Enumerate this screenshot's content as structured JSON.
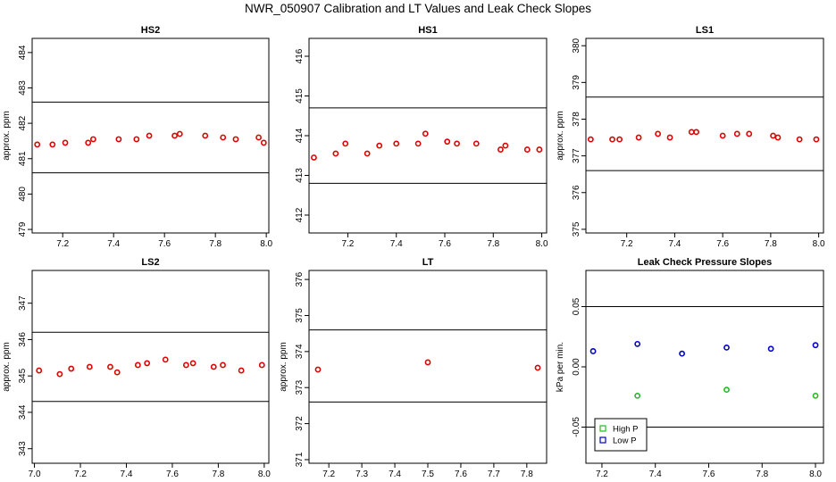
{
  "figure": {
    "title": "NWR_050907  Calibration and LT Values and Leak Check Slopes"
  },
  "chart_data": [
    {
      "id": "hs2",
      "type": "scatter",
      "title": "HS2",
      "xlabel": "",
      "ylabel": "approx. ppm",
      "xlim": [
        7.08,
        8.01
      ],
      "ylim": [
        478.9,
        484.4
      ],
      "x_ticks": [
        7.2,
        7.4,
        7.6,
        7.8,
        8.0
      ],
      "x_tick_labels": [
        "7.2",
        "7.4",
        "7.6",
        "7.8",
        "8.0"
      ],
      "y_ticks": [
        479,
        480,
        481,
        482,
        483,
        484
      ],
      "y_tick_labels": [
        "479",
        "480",
        "481",
        "482",
        "483",
        "484"
      ],
      "hlines": [
        482.6,
        480.6
      ],
      "series": [
        {
          "color": "#dd0000",
          "x": [
            7.1,
            7.16,
            7.21,
            7.3,
            7.32,
            7.42,
            7.49,
            7.54,
            7.64,
            7.66,
            7.76,
            7.83,
            7.88,
            7.97,
            7.99
          ],
          "y": [
            481.4,
            481.4,
            481.45,
            481.45,
            481.55,
            481.55,
            481.55,
            481.65,
            481.65,
            481.7,
            481.65,
            481.6,
            481.55,
            481.6,
            481.45
          ]
        }
      ]
    },
    {
      "id": "hs1",
      "type": "scatter",
      "title": "HS1",
      "xlabel": "",
      "ylabel": "",
      "xlim": [
        7.04,
        8.02
      ],
      "ylim": [
        411.55,
        416.45
      ],
      "x_ticks": [
        7.2,
        7.4,
        7.6,
        7.8,
        8.0
      ],
      "x_tick_labels": [
        "7.2",
        "7.4",
        "7.6",
        "7.8",
        "8.0"
      ],
      "y_ticks": [
        412,
        413,
        414,
        415,
        416
      ],
      "y_tick_labels": [
        "412",
        "413",
        "414",
        "415",
        "416"
      ],
      "hlines": [
        414.7,
        412.8
      ],
      "series": [
        {
          "color": "#dd0000",
          "x": [
            7.06,
            7.15,
            7.19,
            7.28,
            7.33,
            7.4,
            7.49,
            7.52,
            7.61,
            7.65,
            7.73,
            7.83,
            7.85,
            7.94,
            7.99
          ],
          "y": [
            413.45,
            413.55,
            413.8,
            413.55,
            413.75,
            413.8,
            413.8,
            414.05,
            413.85,
            413.8,
            413.8,
            413.65,
            413.75,
            413.65,
            413.65
          ]
        }
      ]
    },
    {
      "id": "ls1",
      "type": "scatter",
      "title": "LS1",
      "xlabel": "",
      "ylabel": "approx. ppm",
      "xlim": [
        7.03,
        8.02
      ],
      "ylim": [
        374.9,
        380.2
      ],
      "x_ticks": [
        7.2,
        7.4,
        7.6,
        7.8,
        8.0
      ],
      "x_tick_labels": [
        "7.2",
        "7.4",
        "7.6",
        "7.8",
        "8.0"
      ],
      "y_ticks": [
        375,
        376,
        377,
        378,
        379,
        380
      ],
      "y_tick_labels": [
        "375",
        "376",
        "377",
        "378",
        "379",
        "380"
      ],
      "hlines": [
        378.6,
        376.6
      ],
      "series": [
        {
          "color": "#dd0000",
          "x": [
            7.05,
            7.14,
            7.17,
            7.25,
            7.33,
            7.38,
            7.47,
            7.49,
            7.6,
            7.66,
            7.71,
            7.81,
            7.83,
            7.92,
            7.99
          ],
          "y": [
            377.45,
            377.45,
            377.45,
            377.5,
            377.6,
            377.5,
            377.65,
            377.65,
            377.55,
            377.6,
            377.6,
            377.55,
            377.5,
            377.45,
            377.45
          ]
        }
      ]
    },
    {
      "id": "ls2",
      "type": "scatter",
      "title": "LS2",
      "xlabel": "",
      "ylabel": "approx. ppm",
      "xlim": [
        6.99,
        8.02
      ],
      "ylim": [
        342.6,
        347.9
      ],
      "x_ticks": [
        7.0,
        7.2,
        7.4,
        7.6,
        7.8,
        8.0
      ],
      "x_tick_labels": [
        "7.0",
        "7.2",
        "7.4",
        "7.6",
        "7.8",
        "8.0"
      ],
      "y_ticks": [
        343,
        344,
        345,
        346,
        347
      ],
      "y_tick_labels": [
        "343",
        "344",
        "345",
        "346",
        "347"
      ],
      "hlines": [
        346.2,
        344.3
      ],
      "series": [
        {
          "color": "#dd0000",
          "x": [
            7.02,
            7.11,
            7.16,
            7.24,
            7.33,
            7.36,
            7.45,
            7.49,
            7.57,
            7.66,
            7.69,
            7.78,
            7.82,
            7.9,
            7.99
          ],
          "y": [
            345.15,
            345.05,
            345.2,
            345.25,
            345.25,
            345.1,
            345.3,
            345.35,
            345.45,
            345.3,
            345.35,
            345.25,
            345.3,
            345.15,
            345.3
          ]
        }
      ]
    },
    {
      "id": "lt",
      "type": "scatter",
      "title": "LT",
      "xlabel": "",
      "ylabel": "approx. ppm",
      "xlim": [
        7.14,
        7.86
      ],
      "ylim": [
        370.9,
        376.25
      ],
      "x_ticks": [
        7.2,
        7.3,
        7.4,
        7.5,
        7.6,
        7.7,
        7.8
      ],
      "x_tick_labels": [
        "7.2",
        "7.3",
        "7.4",
        "7.5",
        "7.6",
        "7.7",
        "7.8"
      ],
      "y_ticks": [
        371,
        372,
        373,
        374,
        375,
        376
      ],
      "y_tick_labels": [
        "371",
        "372",
        "373",
        "374",
        "375",
        "376"
      ],
      "hlines": [
        374.6,
        372.6
      ],
      "series": [
        {
          "color": "#dd0000",
          "x": [
            7.167,
            7.5,
            7.833
          ],
          "y": [
            373.5,
            373.7,
            373.55
          ]
        }
      ]
    },
    {
      "id": "leak",
      "type": "scatter",
      "title": "Leak Check Pressure Slopes",
      "xlabel": "",
      "ylabel": "kPa per min.",
      "xlim": [
        7.14,
        8.03
      ],
      "ylim": [
        -0.08,
        0.08
      ],
      "x_ticks": [
        7.2,
        7.4,
        7.6,
        7.8,
        8.0
      ],
      "x_tick_labels": [
        "7.2",
        "7.4",
        "7.6",
        "7.8",
        "8.0"
      ],
      "y_ticks": [
        -0.05,
        0.0,
        0.05
      ],
      "y_tick_labels": [
        "-0.05",
        "0.00",
        "0.05"
      ],
      "hlines": [
        0.05,
        -0.05
      ],
      "legend_position": "bottom-left",
      "series": [
        {
          "name": "High P",
          "color": "#22bb22",
          "x": [
            7.333,
            7.667,
            8.0
          ],
          "y": [
            -0.024,
            -0.019,
            -0.024
          ]
        },
        {
          "name": "Low P",
          "color": "#0000cc",
          "x": [
            7.167,
            7.333,
            7.5,
            7.667,
            7.833,
            8.0
          ],
          "y": [
            0.013,
            0.019,
            0.011,
            0.016,
            0.015,
            0.018
          ]
        }
      ]
    }
  ]
}
